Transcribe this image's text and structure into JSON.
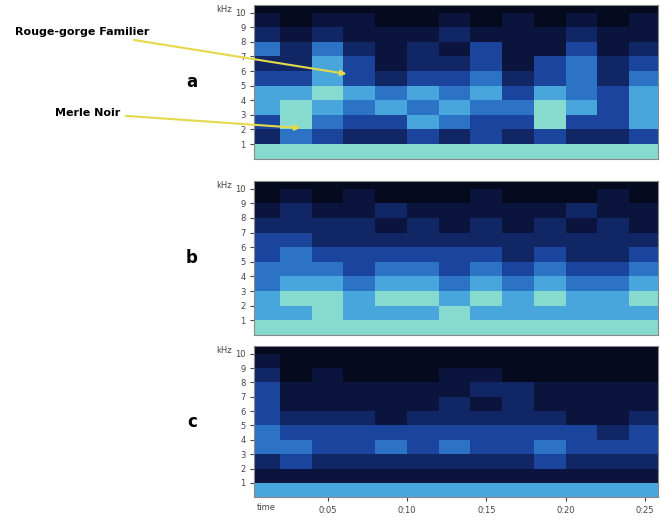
{
  "chart_data": [
    {
      "type": "heatmap",
      "panel_label": "a",
      "y_label": "kHz",
      "tick_labels": "y",
      "xlim": [
        0.4,
        25.8
      ],
      "ylim": [
        0,
        10.5
      ],
      "yticks": [
        1,
        2,
        3,
        4,
        5,
        6,
        7,
        8,
        9,
        10
      ],
      "time_edges": [
        0,
        2,
        4,
        6,
        8,
        10,
        12,
        14,
        16,
        18,
        20,
        22,
        24,
        26
      ],
      "freq_edges": [
        0,
        1,
        2,
        3,
        4,
        5,
        6,
        7,
        8,
        9,
        10
      ],
      "color_range": [
        0,
        8
      ],
      "cells": [
        [
          6,
          6,
          6,
          6,
          6,
          6,
          6,
          6,
          6,
          6,
          6,
          6,
          6
        ],
        [
          2,
          4,
          3,
          2,
          2,
          3,
          2,
          3,
          2,
          3,
          2,
          2,
          3
        ],
        [
          3,
          6,
          4,
          3,
          3,
          5,
          4,
          3,
          3,
          6,
          3,
          3,
          5
        ],
        [
          5,
          6,
          5,
          4,
          5,
          4,
          5,
          4,
          4,
          6,
          5,
          3,
          5
        ],
        [
          5,
          5,
          6,
          5,
          4,
          5,
          4,
          5,
          3,
          5,
          4,
          3,
          5
        ],
        [
          3,
          3,
          5,
          3,
          2,
          3,
          3,
          4,
          2,
          3,
          4,
          2,
          4
        ],
        [
          2,
          2,
          5,
          3,
          1,
          2,
          2,
          3,
          1,
          3,
          4,
          2,
          3
        ],
        [
          4,
          2,
          4,
          2,
          1,
          2,
          1,
          3,
          1,
          1,
          3,
          1,
          2
        ],
        [
          2,
          1,
          2,
          1,
          1,
          1,
          2,
          1,
          1,
          1,
          2,
          1,
          1
        ],
        [
          1,
          0,
          1,
          1,
          0,
          0,
          1,
          0,
          1,
          0,
          1,
          0,
          1
        ]
      ],
      "annotations": [
        {
          "text": "Rouge-gorge Familier",
          "x": 6.2,
          "y": 5.8
        },
        {
          "text": "Merle Noir",
          "x": 3.3,
          "y": 2.1
        }
      ]
    },
    {
      "type": "heatmap",
      "panel_label": "b",
      "y_label": "kHz",
      "tick_labels": "y",
      "xlim": [
        0.4,
        25.8
      ],
      "ylim": [
        0,
        10.5
      ],
      "yticks": [
        1,
        2,
        3,
        4,
        5,
        6,
        7,
        8,
        9,
        10
      ],
      "time_edges": [
        0,
        2,
        4,
        6,
        8,
        10,
        12,
        14,
        16,
        18,
        20,
        22,
        24,
        26
      ],
      "freq_edges": [
        0,
        1,
        2,
        3,
        4,
        5,
        6,
        7,
        8,
        9,
        10
      ],
      "color_range": [
        0,
        8
      ],
      "cells": [
        [
          6,
          6,
          6,
          6,
          6,
          6,
          6,
          6,
          6,
          6,
          6,
          6,
          6
        ],
        [
          5,
          5,
          6,
          5,
          5,
          5,
          6,
          5,
          5,
          5,
          5,
          5,
          5
        ],
        [
          5,
          6,
          6,
          5,
          6,
          6,
          5,
          6,
          5,
          6,
          5,
          5,
          6
        ],
        [
          4,
          5,
          5,
          4,
          5,
          5,
          4,
          5,
          4,
          5,
          4,
          4,
          5
        ],
        [
          4,
          4,
          4,
          3,
          4,
          4,
          3,
          4,
          3,
          4,
          3,
          3,
          4
        ],
        [
          3,
          4,
          3,
          3,
          3,
          3,
          3,
          3,
          2,
          3,
          2,
          2,
          3
        ],
        [
          3,
          3,
          2,
          2,
          2,
          2,
          2,
          2,
          2,
          2,
          2,
          2,
          2
        ],
        [
          2,
          2,
          2,
          2,
          1,
          2,
          1,
          2,
          1,
          2,
          1,
          2,
          1
        ],
        [
          1,
          2,
          1,
          1,
          2,
          1,
          1,
          1,
          1,
          1,
          2,
          1,
          1
        ],
        [
          0,
          1,
          0,
          1,
          0,
          0,
          0,
          1,
          0,
          0,
          0,
          1,
          0
        ]
      ]
    },
    {
      "type": "heatmap",
      "panel_label": "c",
      "y_label": "kHz",
      "x_label": "time",
      "xlim": [
        0.4,
        25.8
      ],
      "ylim": [
        0,
        10.5
      ],
      "yticks": [
        1,
        2,
        3,
        4,
        5,
        6,
        7,
        8,
        9,
        10
      ],
      "xticks": [
        {
          "value": 5,
          "label": "0:05"
        },
        {
          "value": 10,
          "label": "0:10"
        },
        {
          "value": 15,
          "label": "0:15"
        },
        {
          "value": 20,
          "label": "0:20"
        },
        {
          "value": 25,
          "label": "0:25"
        }
      ],
      "time_edges": [
        0,
        2,
        4,
        6,
        8,
        10,
        12,
        14,
        16,
        18,
        20,
        22,
        24,
        26
      ],
      "freq_edges": [
        0,
        1,
        2,
        3,
        4,
        5,
        6,
        7,
        8,
        9,
        10
      ],
      "color_range": [
        0,
        8
      ],
      "cells": [
        [
          5,
          5,
          5,
          5,
          5,
          5,
          5,
          5,
          5,
          5,
          5,
          5,
          5
        ],
        [
          1,
          1,
          1,
          1,
          1,
          1,
          1,
          1,
          1,
          1,
          1,
          1,
          1
        ],
        [
          2,
          3,
          2,
          2,
          2,
          2,
          2,
          2,
          2,
          3,
          2,
          2,
          2
        ],
        [
          4,
          4,
          3,
          3,
          4,
          3,
          4,
          3,
          3,
          4,
          3,
          3,
          3
        ],
        [
          4,
          3,
          3,
          3,
          3,
          3,
          3,
          3,
          3,
          3,
          3,
          2,
          3
        ],
        [
          3,
          2,
          2,
          2,
          1,
          2,
          2,
          2,
          2,
          2,
          1,
          1,
          2
        ],
        [
          3,
          1,
          1,
          1,
          1,
          1,
          2,
          1,
          2,
          1,
          1,
          1,
          1
        ],
        [
          3,
          1,
          1,
          1,
          1,
          1,
          1,
          2,
          2,
          1,
          1,
          1,
          1
        ],
        [
          2,
          0,
          1,
          0,
          0,
          0,
          1,
          1,
          0,
          0,
          0,
          0,
          0
        ],
        [
          1,
          0,
          0,
          0,
          0,
          0,
          0,
          0,
          0,
          0,
          0,
          0,
          0
        ]
      ]
    }
  ]
}
